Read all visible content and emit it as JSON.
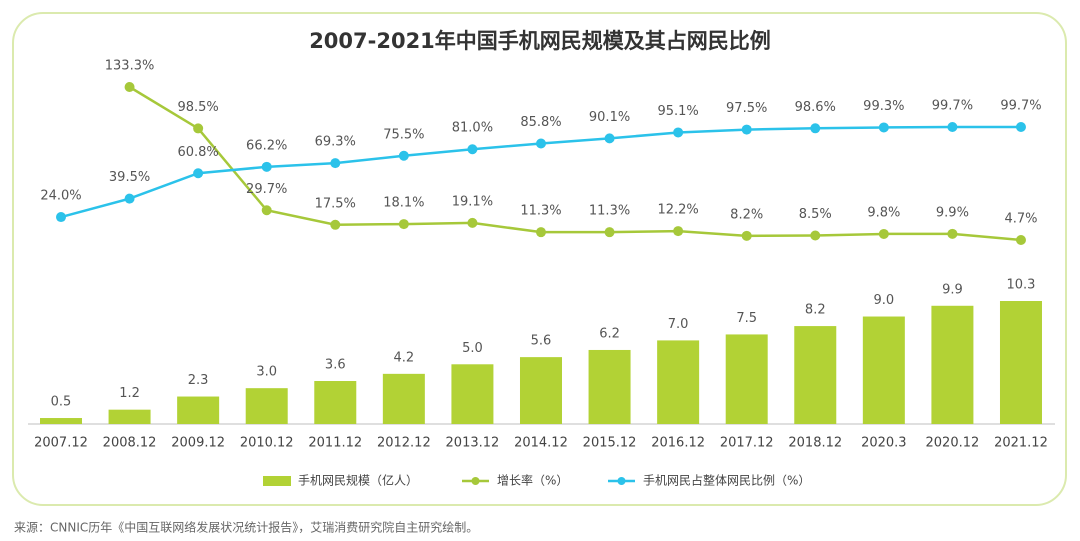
{
  "chart_data": {
    "type": "bar",
    "title": "2007-2021年中国手机网民规模及其占网民比例",
    "categories": [
      "2007.12",
      "2008.12",
      "2009.12",
      "2010.12",
      "2011.12",
      "2012.12",
      "2013.12",
      "2014.12",
      "2015.12",
      "2016.12",
      "2017.12",
      "2018.12",
      "2020.3",
      "2020.12",
      "2021.12"
    ],
    "series": [
      {
        "name": "手机网民规模（亿人）",
        "type": "bar",
        "color": "#b2d235",
        "values": [
          0.5,
          1.2,
          2.3,
          3.0,
          3.6,
          4.2,
          5.0,
          5.6,
          6.2,
          7.0,
          7.5,
          8.2,
          9.0,
          9.9,
          10.3
        ],
        "value_labels": [
          "0.5",
          "1.2",
          "2.3",
          "3.0",
          "3.6",
          "4.2",
          "5.0",
          "5.6",
          "6.2",
          "7.0",
          "7.5",
          "8.2",
          "9.0",
          "9.9",
          "10.3"
        ]
      },
      {
        "name": "增长率（%）",
        "type": "line",
        "color": "#a6c83a",
        "values": [
          null,
          133.3,
          98.5,
          29.7,
          17.5,
          18.1,
          19.1,
          11.3,
          11.3,
          12.2,
          8.2,
          8.5,
          9.8,
          9.9,
          4.7
        ],
        "value_labels": [
          null,
          "133.3%",
          "98.5%",
          "29.7%",
          "17.5%",
          "18.1%",
          "19.1%",
          "11.3%",
          "11.3%",
          "12.2%",
          "8.2%",
          "8.5%",
          "9.8%",
          "9.9%",
          "4.7%"
        ]
      },
      {
        "name": "手机网民占整体网民比例（%）",
        "type": "line",
        "color": "#2bc2ea",
        "values": [
          24.0,
          39.5,
          60.8,
          66.2,
          69.3,
          75.5,
          81.0,
          85.8,
          90.1,
          95.1,
          97.5,
          98.6,
          99.3,
          99.7,
          99.7
        ],
        "value_labels": [
          "24.0%",
          "39.5%",
          "60.8%",
          "66.2%",
          "69.3%",
          "75.5%",
          "81.0%",
          "85.8%",
          "90.1%",
          "95.1%",
          "97.5%",
          "98.6%",
          "99.3%",
          "99.7%",
          "99.7%"
        ]
      }
    ]
  },
  "source": "来源：CNNIC历年《中国互联网络发展状况统计报告》，艾瑞消费研究院自主研究绘制。"
}
